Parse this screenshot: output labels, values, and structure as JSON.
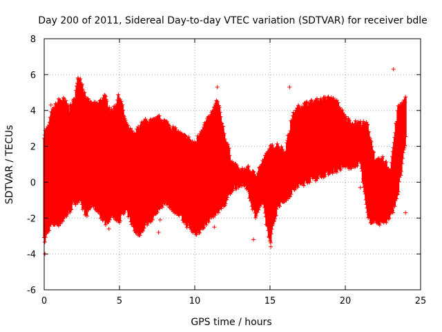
{
  "chart_data": {
    "type": "scatter",
    "title": "Day 200 of 2011, Sidereal Day-to-day VTEC variation (SDTVAR) for receiver bdle",
    "xlabel": "GPS time / hours",
    "ylabel": "SDTVAR / TECUs",
    "xlim": [
      0,
      25
    ],
    "ylim": [
      -6,
      8
    ],
    "xticks": [
      0,
      5,
      10,
      15,
      20,
      25
    ],
    "yticks": [
      -6,
      -4,
      -2,
      0,
      2,
      4,
      6,
      8
    ],
    "grid": true,
    "marker": "+",
    "color": "#ff0000",
    "series": [
      {
        "name": "SDTVAR",
        "envelope": {
          "x": [
            0.0,
            0.3,
            0.5,
            1.0,
            1.3,
            1.7,
            2.0,
            2.3,
            2.5,
            2.8,
            3.2,
            3.6,
            4.0,
            4.5,
            5.0,
            5.5,
            6.0,
            6.3,
            6.7,
            7.2,
            7.7,
            8.2,
            8.7,
            9.2,
            9.7,
            10.0,
            10.5,
            11.0,
            11.5,
            12.0,
            12.5,
            13.0,
            13.5,
            14.0,
            14.5,
            15.0,
            15.5,
            16.0,
            16.5,
            17.0,
            17.5,
            18.0,
            18.5,
            19.0,
            19.5,
            20.0,
            20.5,
            21.0,
            21.5,
            22.0,
            22.5,
            23.0,
            23.5,
            24.0
          ],
          "upper": [
            2.7,
            3.0,
            3.8,
            4.5,
            4.5,
            4.0,
            4.5,
            5.9,
            5.5,
            4.5,
            4.2,
            4.3,
            4.7,
            3.8,
            4.8,
            3.0,
            2.5,
            3.0,
            3.3,
            3.3,
            3.5,
            3.2,
            2.8,
            2.5,
            2.3,
            2.0,
            3.0,
            3.5,
            4.5,
            2.5,
            1.0,
            0.5,
            0.7,
            0.3,
            1.0,
            1.8,
            2.0,
            1.6,
            3.6,
            4.2,
            4.3,
            4.4,
            4.5,
            4.6,
            4.3,
            3.5,
            3.2,
            3.2,
            3.1,
            1.0,
            1.2,
            0.6,
            4.0,
            4.6
          ],
          "lower": [
            -3.3,
            -2.5,
            -2.3,
            -2.2,
            -2.0,
            -1.5,
            -1.0,
            -1.0,
            -1.3,
            -1.7,
            -1.2,
            -1.5,
            -2.2,
            -1.8,
            -2.0,
            -1.5,
            -2.6,
            -2.8,
            -2.3,
            -1.9,
            -1.2,
            -1.1,
            -1.5,
            -2.0,
            -2.5,
            -2.8,
            -2.5,
            -1.9,
            -1.5,
            -1.2,
            -0.3,
            0.0,
            -0.2,
            -1.8,
            -1.0,
            -3.3,
            -1.2,
            -0.9,
            -0.4,
            -0.1,
            0.2,
            0.3,
            0.5,
            0.7,
            0.8,
            1.0,
            0.9,
            1.3,
            -2.0,
            -2.1,
            -2.2,
            -1.9,
            -0.5,
            2.3
          ]
        },
        "outliers": [
          {
            "x": 0.45,
            "y": 4.3
          },
          {
            "x": 7.7,
            "y": -2.1
          },
          {
            "x": 7.6,
            "y": -2.8
          },
          {
            "x": 11.3,
            "y": -2.5
          },
          {
            "x": 11.5,
            "y": 5.3
          },
          {
            "x": 0.05,
            "y": -4.0
          },
          {
            "x": 4.3,
            "y": -2.6
          },
          {
            "x": 15.05,
            "y": -3.6
          },
          {
            "x": 13.9,
            "y": -3.2
          },
          {
            "x": 23.2,
            "y": 6.3
          },
          {
            "x": 24.0,
            "y": -1.7
          },
          {
            "x": 21.0,
            "y": -0.3
          },
          {
            "x": 16.3,
            "y": 5.3
          }
        ]
      }
    ]
  }
}
